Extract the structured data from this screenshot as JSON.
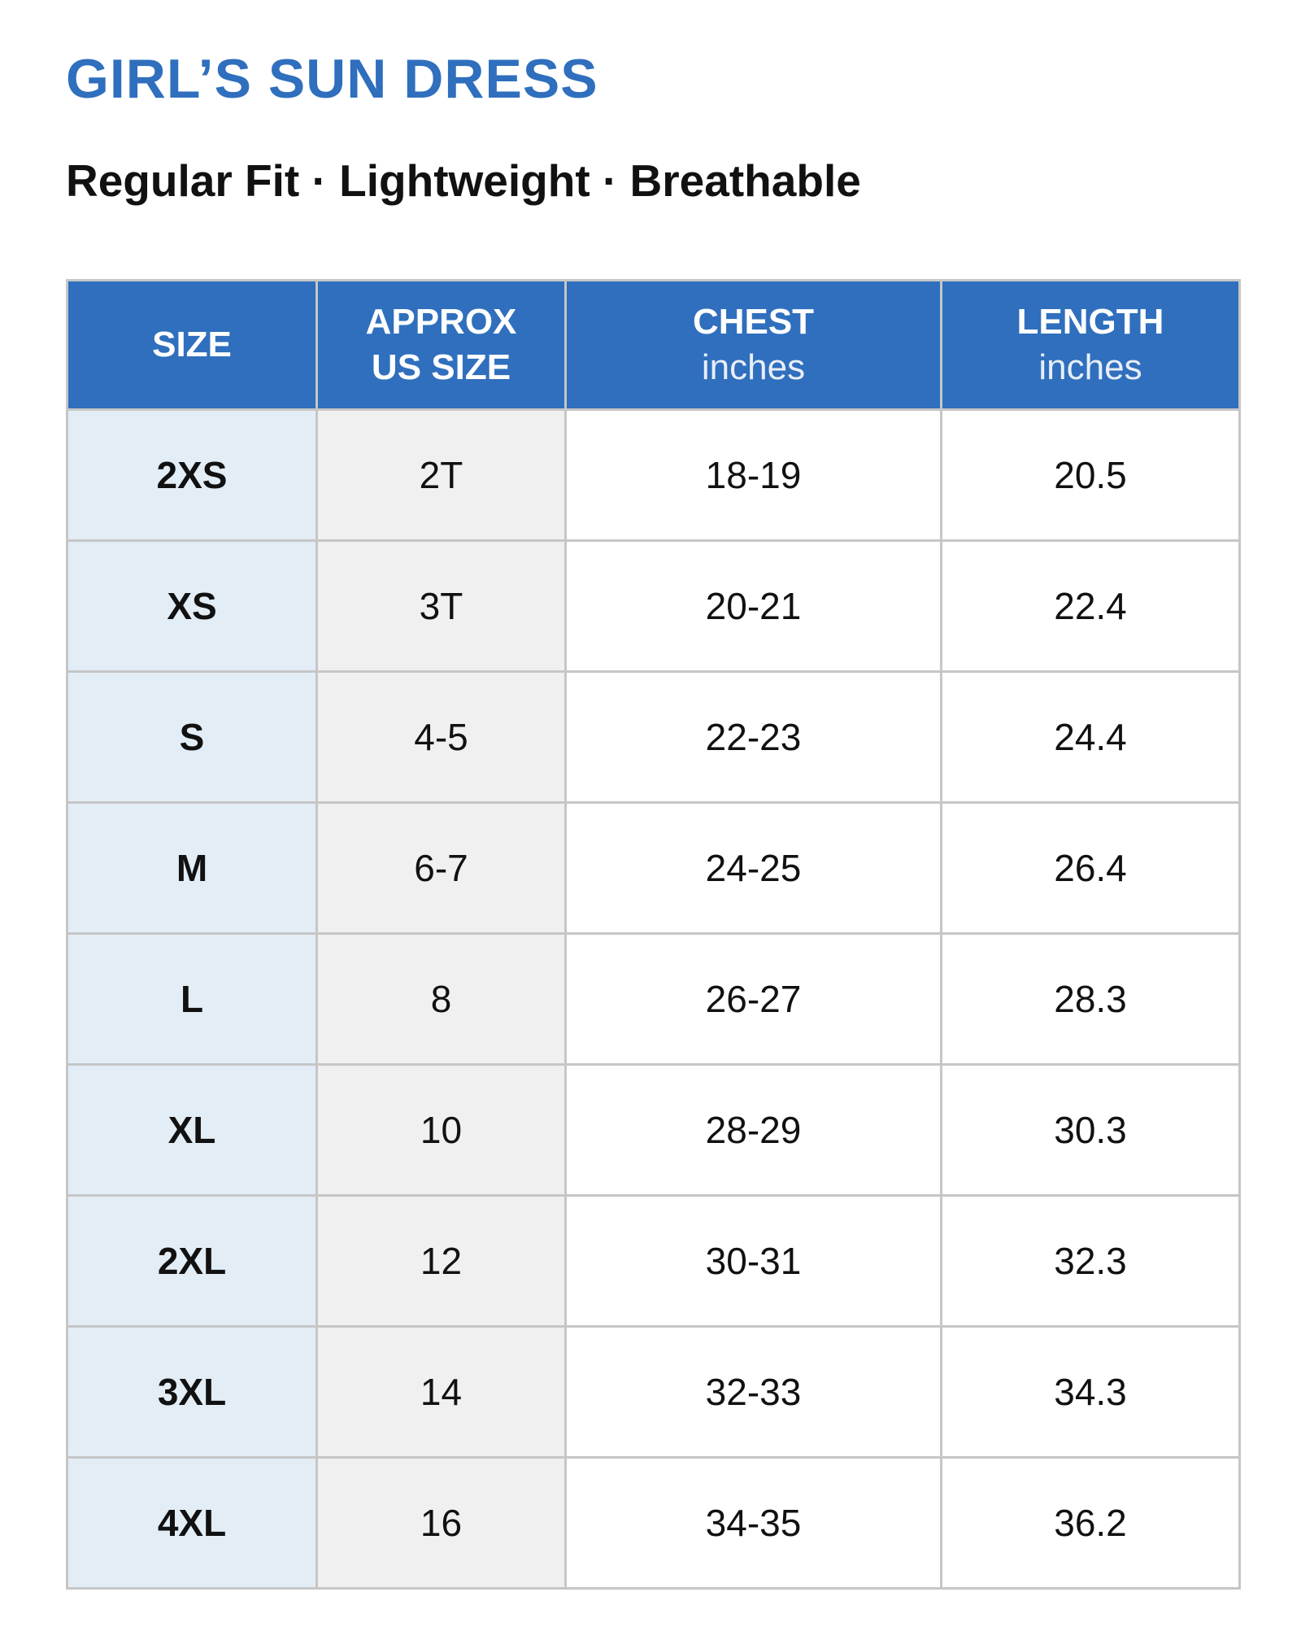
{
  "header": {
    "title": "GIRL’S SUN DRESS",
    "subtitle": "Regular Fit · Lightweight · Breathable"
  },
  "table": {
    "columns": [
      {
        "title": [
          "SIZE"
        ]
      },
      {
        "title": [
          "APPROX",
          "US SIZE"
        ]
      },
      {
        "title": [
          "CHEST"
        ],
        "unit": "inches"
      },
      {
        "title": [
          "LENGTH"
        ],
        "unit": "inches"
      }
    ],
    "rows": [
      [
        "2XS",
        "2T",
        "18-19",
        "20.5"
      ],
      [
        "XS",
        "3T",
        "20-21",
        "22.4"
      ],
      [
        "S",
        "4-5",
        "22-23",
        "24.4"
      ],
      [
        "M",
        "6-7",
        "24-25",
        "26.4"
      ],
      [
        "L",
        "8",
        "26-27",
        "28.3"
      ],
      [
        "XL",
        "10",
        "28-29",
        "30.3"
      ],
      [
        "2XL",
        "12",
        "30-31",
        "32.3"
      ],
      [
        "3XL",
        "14",
        "32-33",
        "34.3"
      ],
      [
        "4XL",
        "16",
        "34-35",
        "36.2"
      ]
    ]
  }
}
